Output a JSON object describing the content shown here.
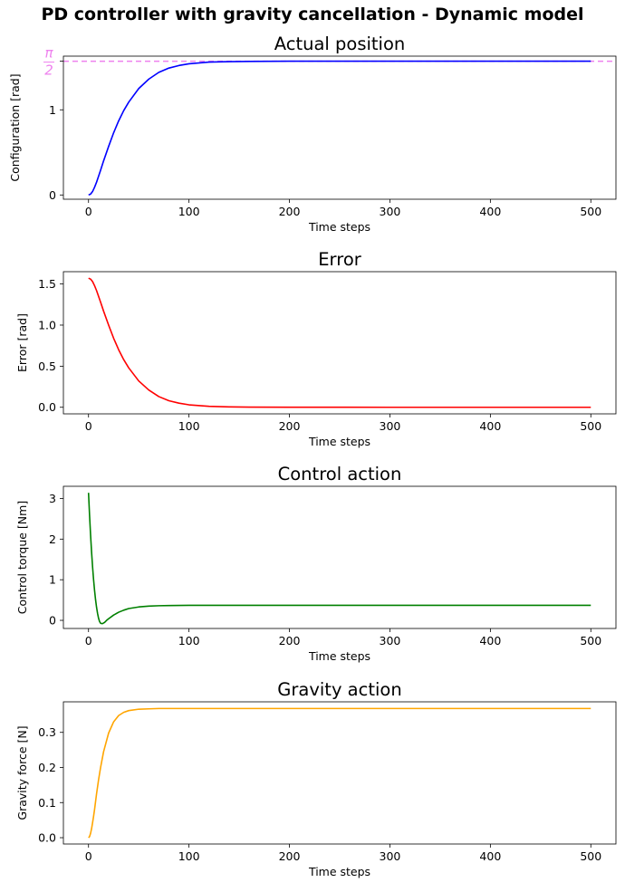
{
  "figure": {
    "suptitle": "PD controller with gravity cancellation - Dynamic model"
  },
  "chart_data": [
    {
      "type": "line",
      "title": "Actual position",
      "xlabel": "Time steps",
      "ylabel": "Configuration [rad]",
      "xlim": [
        -25,
        525
      ],
      "ylim": [
        -0.05,
        1.63
      ],
      "xticks": [
        0,
        100,
        200,
        300,
        400,
        500
      ],
      "yticks": [
        {
          "value": 0,
          "label": "0",
          "color": "#000000"
        },
        {
          "value": 1,
          "label": "1",
          "color": "#000000"
        },
        {
          "value": 1.5708,
          "label": "π/2",
          "color": "#ee82ee"
        }
      ],
      "reference_line": {
        "value": 1.5708,
        "color": "#ee82ee",
        "style": "dashed"
      },
      "series": [
        {
          "color": "#0000ff",
          "x": [
            0,
            2,
            4,
            6,
            8,
            10,
            12,
            15,
            20,
            25,
            30,
            35,
            40,
            50,
            60,
            70,
            80,
            90,
            100,
            120,
            140,
            160,
            200,
            300,
            400,
            500
          ],
          "y": [
            0.0,
            0.01,
            0.04,
            0.09,
            0.15,
            0.22,
            0.29,
            0.4,
            0.57,
            0.73,
            0.87,
            0.99,
            1.09,
            1.25,
            1.36,
            1.44,
            1.49,
            1.52,
            1.54,
            1.56,
            1.565,
            1.568,
            1.5705,
            1.5708,
            1.5708,
            1.5708
          ]
        }
      ],
      "grid": false
    },
    {
      "type": "line",
      "title": "Error",
      "xlabel": "Time steps",
      "ylabel": "Error [rad]",
      "xlim": [
        -25,
        525
      ],
      "ylim": [
        -0.08,
        1.65
      ],
      "xticks": [
        0,
        100,
        200,
        300,
        400,
        500
      ],
      "yticks": [
        {
          "value": 0.0,
          "label": "0.0"
        },
        {
          "value": 0.5,
          "label": "0.5"
        },
        {
          "value": 1.0,
          "label": "1.0"
        },
        {
          "value": 1.5,
          "label": "1.5"
        }
      ],
      "series": [
        {
          "color": "#ff0000",
          "x": [
            0,
            2,
            4,
            6,
            8,
            10,
            12,
            15,
            20,
            25,
            30,
            35,
            40,
            50,
            60,
            70,
            80,
            90,
            100,
            120,
            140,
            160,
            200,
            300,
            400,
            500
          ],
          "y": [
            1.5708,
            1.56,
            1.53,
            1.48,
            1.42,
            1.35,
            1.28,
            1.17,
            1.0,
            0.84,
            0.7,
            0.58,
            0.48,
            0.32,
            0.21,
            0.13,
            0.08,
            0.05,
            0.03,
            0.012,
            0.005,
            0.002,
            0.0003,
            0.0,
            0.0,
            0.0
          ]
        }
      ],
      "grid": false
    },
    {
      "type": "line",
      "title": "Control action",
      "xlabel": "Time steps",
      "ylabel": "Control torque [Nm]",
      "xlim": [
        -25,
        525
      ],
      "ylim": [
        -0.2,
        3.3
      ],
      "xticks": [
        0,
        100,
        200,
        300,
        400,
        500
      ],
      "yticks": [
        {
          "value": 0,
          "label": "0"
        },
        {
          "value": 1,
          "label": "1"
        },
        {
          "value": 2,
          "label": "2"
        },
        {
          "value": 3,
          "label": "3"
        }
      ],
      "series": [
        {
          "color": "#008000",
          "x": [
            0,
            1,
            2,
            3,
            4,
            5,
            6,
            7,
            8,
            9,
            10,
            11,
            12,
            13,
            14,
            16,
            18,
            20,
            25,
            30,
            35,
            40,
            50,
            60,
            70,
            80,
            100,
            150,
            200,
            300,
            400,
            500
          ],
          "y": [
            3.14,
            2.6,
            2.12,
            1.7,
            1.33,
            1.01,
            0.74,
            0.51,
            0.32,
            0.17,
            0.05,
            -0.03,
            -0.07,
            -0.08,
            -0.08,
            -0.05,
            0.0,
            0.04,
            0.13,
            0.2,
            0.25,
            0.29,
            0.33,
            0.35,
            0.36,
            0.365,
            0.37,
            0.37,
            0.37,
            0.37,
            0.37,
            0.37
          ]
        }
      ],
      "grid": false
    },
    {
      "type": "line",
      "title": "Gravity action",
      "xlabel": "Time steps",
      "ylabel": "Gravity force [N]",
      "xlim": [
        -25,
        525
      ],
      "ylim": [
        -0.018,
        0.387
      ],
      "xticks": [
        0,
        100,
        200,
        300,
        400,
        500
      ],
      "yticks": [
        {
          "value": 0.0,
          "label": "0.0"
        },
        {
          "value": 0.1,
          "label": "0.1"
        },
        {
          "value": 0.2,
          "label": "0.2"
        },
        {
          "value": 0.3,
          "label": "0.3"
        }
      ],
      "series": [
        {
          "color": "#ffa500",
          "x": [
            0,
            1,
            2,
            3,
            4,
            5,
            6,
            8,
            10,
            12,
            15,
            20,
            25,
            30,
            35,
            40,
            50,
            60,
            70,
            80,
            100,
            150,
            200,
            300,
            400,
            500
          ],
          "y": [
            0.0,
            0.003,
            0.012,
            0.025,
            0.042,
            0.06,
            0.08,
            0.125,
            0.165,
            0.2,
            0.245,
            0.298,
            0.33,
            0.348,
            0.357,
            0.362,
            0.366,
            0.367,
            0.368,
            0.368,
            0.368,
            0.368,
            0.368,
            0.368,
            0.368,
            0.368
          ]
        }
      ],
      "grid": false
    }
  ]
}
